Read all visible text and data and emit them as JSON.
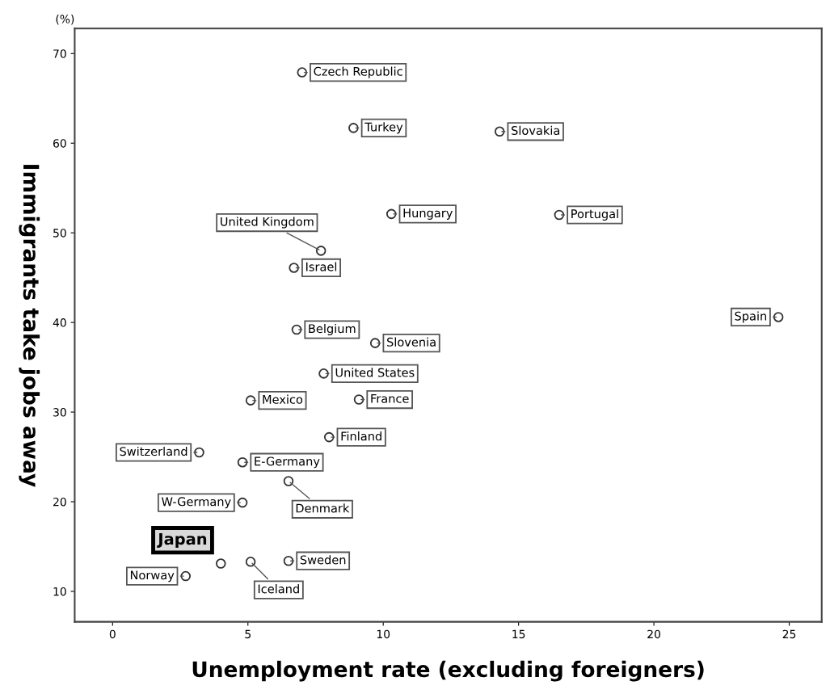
{
  "chart_data": {
    "type": "scatter",
    "xlabel": "Unemployment rate (excluding foreigners)",
    "ylabel": "Immigrants take jobs away",
    "xlim": [
      -1.4,
      26.2
    ],
    "ylim": [
      6.6,
      72.8
    ],
    "xticks": [
      0,
      5,
      10,
      15,
      20,
      25
    ],
    "yticks": [
      10,
      20,
      30,
      40,
      50,
      60,
      70
    ],
    "grid": false,
    "legend": false,
    "marker": "circle",
    "series": [
      {
        "color": "#333333",
        "x": [
          7.0,
          8.9,
          14.3,
          10.3,
          16.5,
          6.7,
          7.7,
          24.6,
          6.8,
          9.7,
          7.8,
          5.1,
          9.1,
          8.0,
          3.2,
          4.8,
          6.5,
          4.8,
          5.1,
          6.5,
          2.7
        ],
        "values": [
          67.9,
          61.7,
          61.3,
          52.1,
          52.0,
          46.1,
          48.0,
          40.6,
          39.2,
          37.7,
          34.3,
          31.3,
          31.4,
          27.2,
          25.5,
          24.4,
          22.3,
          19.9,
          13.3,
          13.4,
          11.7
        ]
      },
      {
        "name": "Japan",
        "color": "#333333",
        "x": [
          4.0
        ],
        "values": [
          13.1
        ]
      }
    ],
    "annotations": [
      "(%)",
      {
        "text": "Czech Republic",
        "x": 7.0,
        "y": 67.9
      },
      {
        "text": "Turkey",
        "x": 8.9,
        "y": 61.7
      },
      {
        "text": "Slovakia",
        "x": 14.3,
        "y": 61.3
      },
      {
        "text": "Hungary",
        "x": 10.3,
        "y": 52.1
      },
      {
        "text": "Portugal",
        "x": 16.5,
        "y": 52.0
      },
      {
        "text": "Israel",
        "x": 6.7,
        "y": 46.1
      },
      {
        "text": "United Kingdom",
        "x": 7.7,
        "y": 48.0
      },
      {
        "text": "Spain",
        "x": 24.6,
        "y": 40.6
      },
      {
        "text": "Belgium",
        "x": 6.8,
        "y": 39.2
      },
      {
        "text": "Slovenia",
        "x": 9.7,
        "y": 37.7
      },
      {
        "text": "United States",
        "x": 7.8,
        "y": 34.3
      },
      {
        "text": "Mexico",
        "x": 5.1,
        "y": 31.3
      },
      {
        "text": "France",
        "x": 9.1,
        "y": 31.4
      },
      {
        "text": "Finland",
        "x": 8.0,
        "y": 27.2
      },
      {
        "text": "Switzerland",
        "x": 3.2,
        "y": 25.5
      },
      {
        "text": "E-Germany",
        "x": 4.8,
        "y": 24.4
      },
      {
        "text": "Denmark",
        "x": 6.5,
        "y": 22.3
      },
      {
        "text": "W-Germany",
        "x": 4.8,
        "y": 19.9
      },
      {
        "text": "Iceland",
        "x": 5.1,
        "y": 13.3
      },
      {
        "text": "Sweden",
        "x": 6.5,
        "y": 13.4
      },
      {
        "text": "Norway",
        "x": 2.7,
        "y": 11.7
      }
    ]
  }
}
